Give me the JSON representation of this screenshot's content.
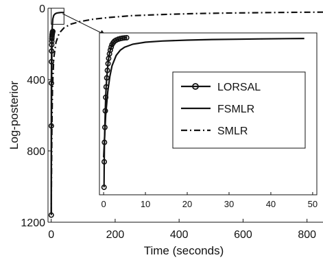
{
  "chart_data": {
    "type": "line",
    "title": "",
    "xlabel": "Time (seconds)",
    "ylabel": "Log-posterior",
    "xlim": [
      -10,
      850
    ],
    "ylim": [
      1200,
      0
    ],
    "y_inverted": true,
    "xticks": [
      {
        "value": 0,
        "label": "0"
      },
      {
        "value": 200,
        "label": "200"
      },
      {
        "value": 400,
        "label": "400"
      },
      {
        "value": 600,
        "label": "600"
      },
      {
        "value": 800,
        "label": "800"
      }
    ],
    "yticks": [
      {
        "value": 0,
        "label": "0"
      },
      {
        "value": 400,
        "label": "400"
      },
      {
        "value": 800,
        "label": "800"
      },
      {
        "value": 1200,
        "label": "1200"
      }
    ],
    "series": [
      {
        "name": "LORSAL",
        "style": "solid-circle-markers",
        "color": "#111111",
        "x": [
          0.2,
          0.4,
          0.6,
          0.9,
          1.2,
          1.5,
          1.8,
          2.1,
          2.4,
          2.8,
          3.2,
          3.6,
          4.0,
          4.5,
          5.0
        ],
        "y": [
          1160,
          660,
          420,
          300,
          240,
          205,
          185,
          170,
          160,
          150,
          145,
          140,
          135,
          132,
          130
        ]
      },
      {
        "name": "FSMLR",
        "style": "solid",
        "color": "#111111",
        "x": [
          0,
          1,
          2,
          3,
          5,
          8,
          12,
          16,
          20,
          25,
          30,
          35,
          40
        ],
        "y": [
          1150,
          600,
          250,
          110,
          60,
          40,
          32,
          28,
          26,
          25,
          24,
          24,
          24
        ]
      },
      {
        "name": "SMLR",
        "style": "dash-dot",
        "color": "#111111",
        "x": [
          0,
          2,
          4,
          8,
          15,
          25,
          40,
          60,
          90,
          130,
          180,
          250,
          350,
          450,
          550,
          650,
          750,
          850
        ],
        "y": [
          1150,
          700,
          450,
          280,
          190,
          140,
          110,
          90,
          75,
          62,
          52,
          42,
          35,
          30,
          27,
          25,
          23,
          22
        ]
      }
    ],
    "inset": {
      "xlim": [
        -1,
        51
      ],
      "ylim": [
        1050,
        -30
      ],
      "xticks": [
        {
          "value": 0,
          "label": "0"
        },
        {
          "value": 10,
          "label": "10"
        },
        {
          "value": 20,
          "label": "20"
        },
        {
          "value": 30,
          "label": "30"
        },
        {
          "value": 40,
          "label": "40"
        },
        {
          "value": 50,
          "label": "50"
        }
      ],
      "zoom_region": {
        "x": [
          0,
          40
        ],
        "y": [
          0,
          90
        ]
      },
      "series": [
        {
          "name": "LORSAL",
          "style": "solid-circle-markers",
          "x": [
            0.1,
            0.15,
            0.2,
            0.3,
            0.4,
            0.5,
            0.6,
            0.75,
            0.9,
            1.05,
            1.2,
            1.4,
            1.6,
            1.8,
            2.0,
            2.3,
            2.6,
            3.0,
            3.5,
            4.0,
            4.5,
            5.0,
            5.5
          ],
          "y": [
            1000,
            830,
            700,
            600,
            490,
            400,
            330,
            270,
            220,
            175,
            140,
            110,
            85,
            65,
            48,
            35,
            25,
            18,
            12,
            8,
            5,
            3,
            2
          ]
        },
        {
          "name": "FSMLR",
          "style": "solid",
          "x": [
            0,
            0.5,
            1,
            1.5,
            2,
            3,
            4,
            5,
            7,
            10,
            14,
            20,
            26,
            32,
            38,
            44,
            48
          ],
          "y": [
            800,
            520,
            360,
            260,
            190,
            120,
            85,
            65,
            45,
            32,
            24,
            18,
            14,
            12,
            10,
            8,
            7
          ]
        }
      ]
    },
    "legend": {
      "placement": "inside-inset",
      "entries": [
        {
          "label": "LORSAL",
          "style": "solid-circle-markers"
        },
        {
          "label": "FSMLR",
          "style": "solid"
        },
        {
          "label": "SMLR",
          "style": "dash-dot"
        }
      ]
    },
    "grid": false
  }
}
